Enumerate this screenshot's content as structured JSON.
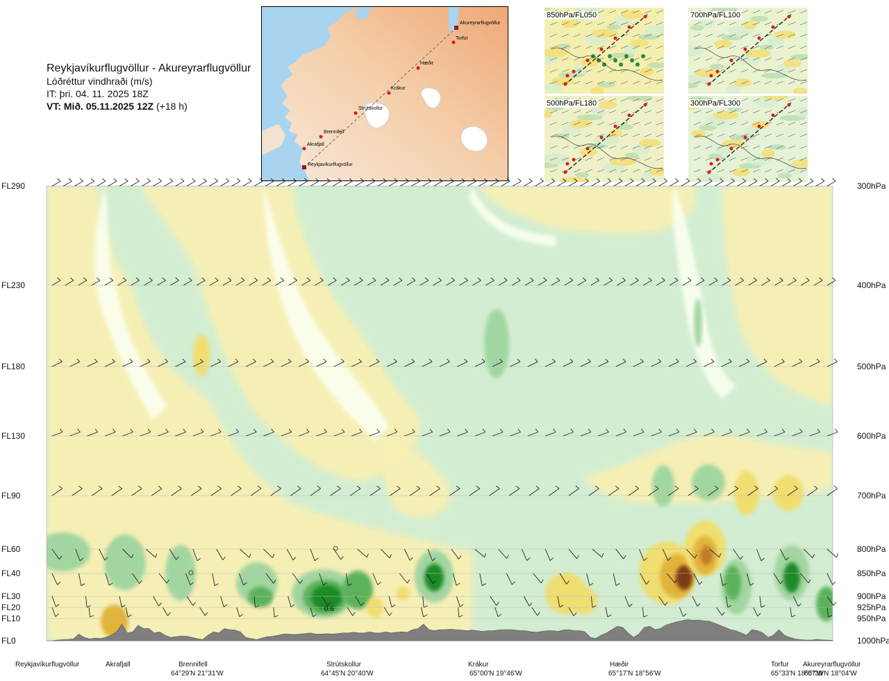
{
  "header": {
    "route": "Reykjavíkurflugvöllur - Akureyrarflugvöllur",
    "quantity": "Lóðréttur vindhraði (m/s)",
    "init_time": "IT: þri. 04. 11. 2025 18Z",
    "valid_label": "VT: Mið. 05.11.2025 12Z",
    "valid_offset": "(+18 h)"
  },
  "map": {
    "points": [
      {
        "name": "Reykjavíkurflugvöllur",
        "kind": "airport"
      },
      {
        "name": "Akrafjall",
        "kind": "waypoint"
      },
      {
        "name": "Brennifell",
        "kind": "waypoint"
      },
      {
        "name": "Strútskollur",
        "kind": "waypoint"
      },
      {
        "name": "Krákur",
        "kind": "waypoint"
      },
      {
        "name": "Hæðir",
        "kind": "waypoint"
      },
      {
        "name": "Torfur",
        "kind": "waypoint"
      },
      {
        "name": "Akureyrarflugvöllur",
        "kind": "airport"
      }
    ]
  },
  "panels": [
    {
      "label": "850hPa/FL050"
    },
    {
      "label": "700hPa/FL100"
    },
    {
      "label": "500hPa/FL180"
    },
    {
      "label": "300hPa/FL300"
    }
  ],
  "colors": {
    "terrain": "#7f7f7f",
    "down_weak": "#f8f0b4",
    "down_mod": "#f0de70",
    "down_strong": "#e2b43a",
    "down_very": "#c47a28",
    "down_extreme": "#7a3a18",
    "neutral": "#fafff0",
    "up_weak": "#d2edd2",
    "up_mod": "#a2d6a0",
    "up_strong": "#5cb25a",
    "up_extreme": "#1a8a26"
  },
  "chart_data": {
    "type": "heatmap",
    "title": "Lóðréttur vindhraði (m/s)",
    "x_stations": [
      {
        "name": "Reykjavíkurflugvöllur",
        "coord": ""
      },
      {
        "name": "Akrafjall",
        "coord": ""
      },
      {
        "name": "Brennifell",
        "coord": "64°29'N 21°31'W"
      },
      {
        "name": "Strútskollur",
        "coord": "64°45'N 20°40'W"
      },
      {
        "name": "Krákur",
        "coord": "65°00'N 19°46'W"
      },
      {
        "name": "Hæðir",
        "coord": "65°17'N 18°56'W"
      },
      {
        "name": "Torfur",
        "coord": "65°33'N 18°07'W"
      },
      {
        "name": "Akureyrarflugvöllur",
        "coord": "65°39'N 18°04'W"
      }
    ],
    "levels": [
      {
        "fl": "FL290",
        "hpa": "300hPa"
      },
      {
        "fl": "FL230",
        "hpa": "400hPa"
      },
      {
        "fl": "FL180",
        "hpa": "500hPa"
      },
      {
        "fl": "FL130",
        "hpa": "600hPa"
      },
      {
        "fl": "FL90",
        "hpa": "700hPa"
      },
      {
        "fl": "FL60",
        "hpa": "800hPa"
      },
      {
        "fl": "FL40",
        "hpa": "850hPa"
      },
      {
        "fl": "FL30",
        "hpa": "900hPa"
      },
      {
        "fl": "FL20",
        "hpa": "925hPa"
      },
      {
        "fl": "FL10",
        "hpa": "950hPa"
      },
      {
        "fl": "FL0",
        "hpa": "1000hPa"
      }
    ],
    "contour_label": "0.6",
    "terrain_fl": [
      0,
      0,
      0.3,
      0.5,
      0.6,
      0.8,
      3.0,
      1.5,
      0.8,
      1.2,
      1.0,
      1.5,
      2.5,
      4.0,
      7.5,
      3.5,
      4.0,
      7.0,
      5.5,
      5.5,
      3.5,
      4.0,
      2.5,
      1.5,
      1.8,
      2.2,
      2.0,
      1.5,
      0.9,
      0.5,
      2.5,
      4.0,
      3.5,
      5.5,
      5.0,
      4.8,
      4.0,
      1.5,
      1.0,
      0.5,
      1.2,
      1.8,
      2.0,
      2.5,
      3.0,
      3.0,
      2.8,
      3.0,
      3.2,
      3.5,
      3.0,
      3.0,
      3.2,
      3.0,
      3.2,
      3.5,
      3.5,
      3.8,
      3.5,
      3.5,
      4.0,
      3.5,
      3.5,
      4.0,
      3.5,
      3.8,
      4.0,
      3.8,
      5.0,
      5.5,
      7.5,
      5.0,
      4.5,
      5.0,
      5.0,
      5.2,
      5.0,
      4.8,
      4.5,
      4.8,
      4.5,
      4.2,
      4.5,
      4.5,
      4.8,
      5.0,
      5.0,
      4.8,
      4.5,
      4.5,
      4.0,
      3.8,
      4.2,
      4.5,
      4.5,
      4.2,
      4.8,
      5.0,
      4.5,
      4.5,
      4.0,
      1.5,
      1.0,
      2.5,
      3.5,
      5.0,
      6.5,
      6.0,
      3.5,
      1.5,
      3.0,
      6.0,
      6.5,
      5.0,
      5.5,
      7.0,
      7.8,
      8.5,
      9.0,
      9.5,
      9.2,
      9.3,
      9.0,
      8.8,
      8.0,
      7.0,
      6.0,
      5.0,
      4.5,
      3.5,
      2.5,
      5.0,
      4.5,
      3.5,
      1.5,
      2.5,
      5.0,
      2.5,
      1.5,
      0.8,
      0.5,
      0.3,
      0.3,
      0.6,
      0.4,
      0.3,
      0.2
    ],
    "wind_down_cells": [
      {
        "x": 0.15,
        "fl": 18,
        "w": 0.03,
        "h": 5,
        "level": 2
      },
      {
        "x": 0.08,
        "fl": 4,
        "w": 0.05,
        "h": 2,
        "level": 1
      },
      {
        "x": 0.35,
        "fl": 22,
        "w": 0.15,
        "h": 14,
        "level": 1
      },
      {
        "x": 0.76,
        "fl": 2,
        "w": 0.04,
        "h": 3,
        "level": 3
      },
      {
        "x": 0.93,
        "fl": 8,
        "w": 0.03,
        "h": 3,
        "level": 2
      }
    ]
  }
}
